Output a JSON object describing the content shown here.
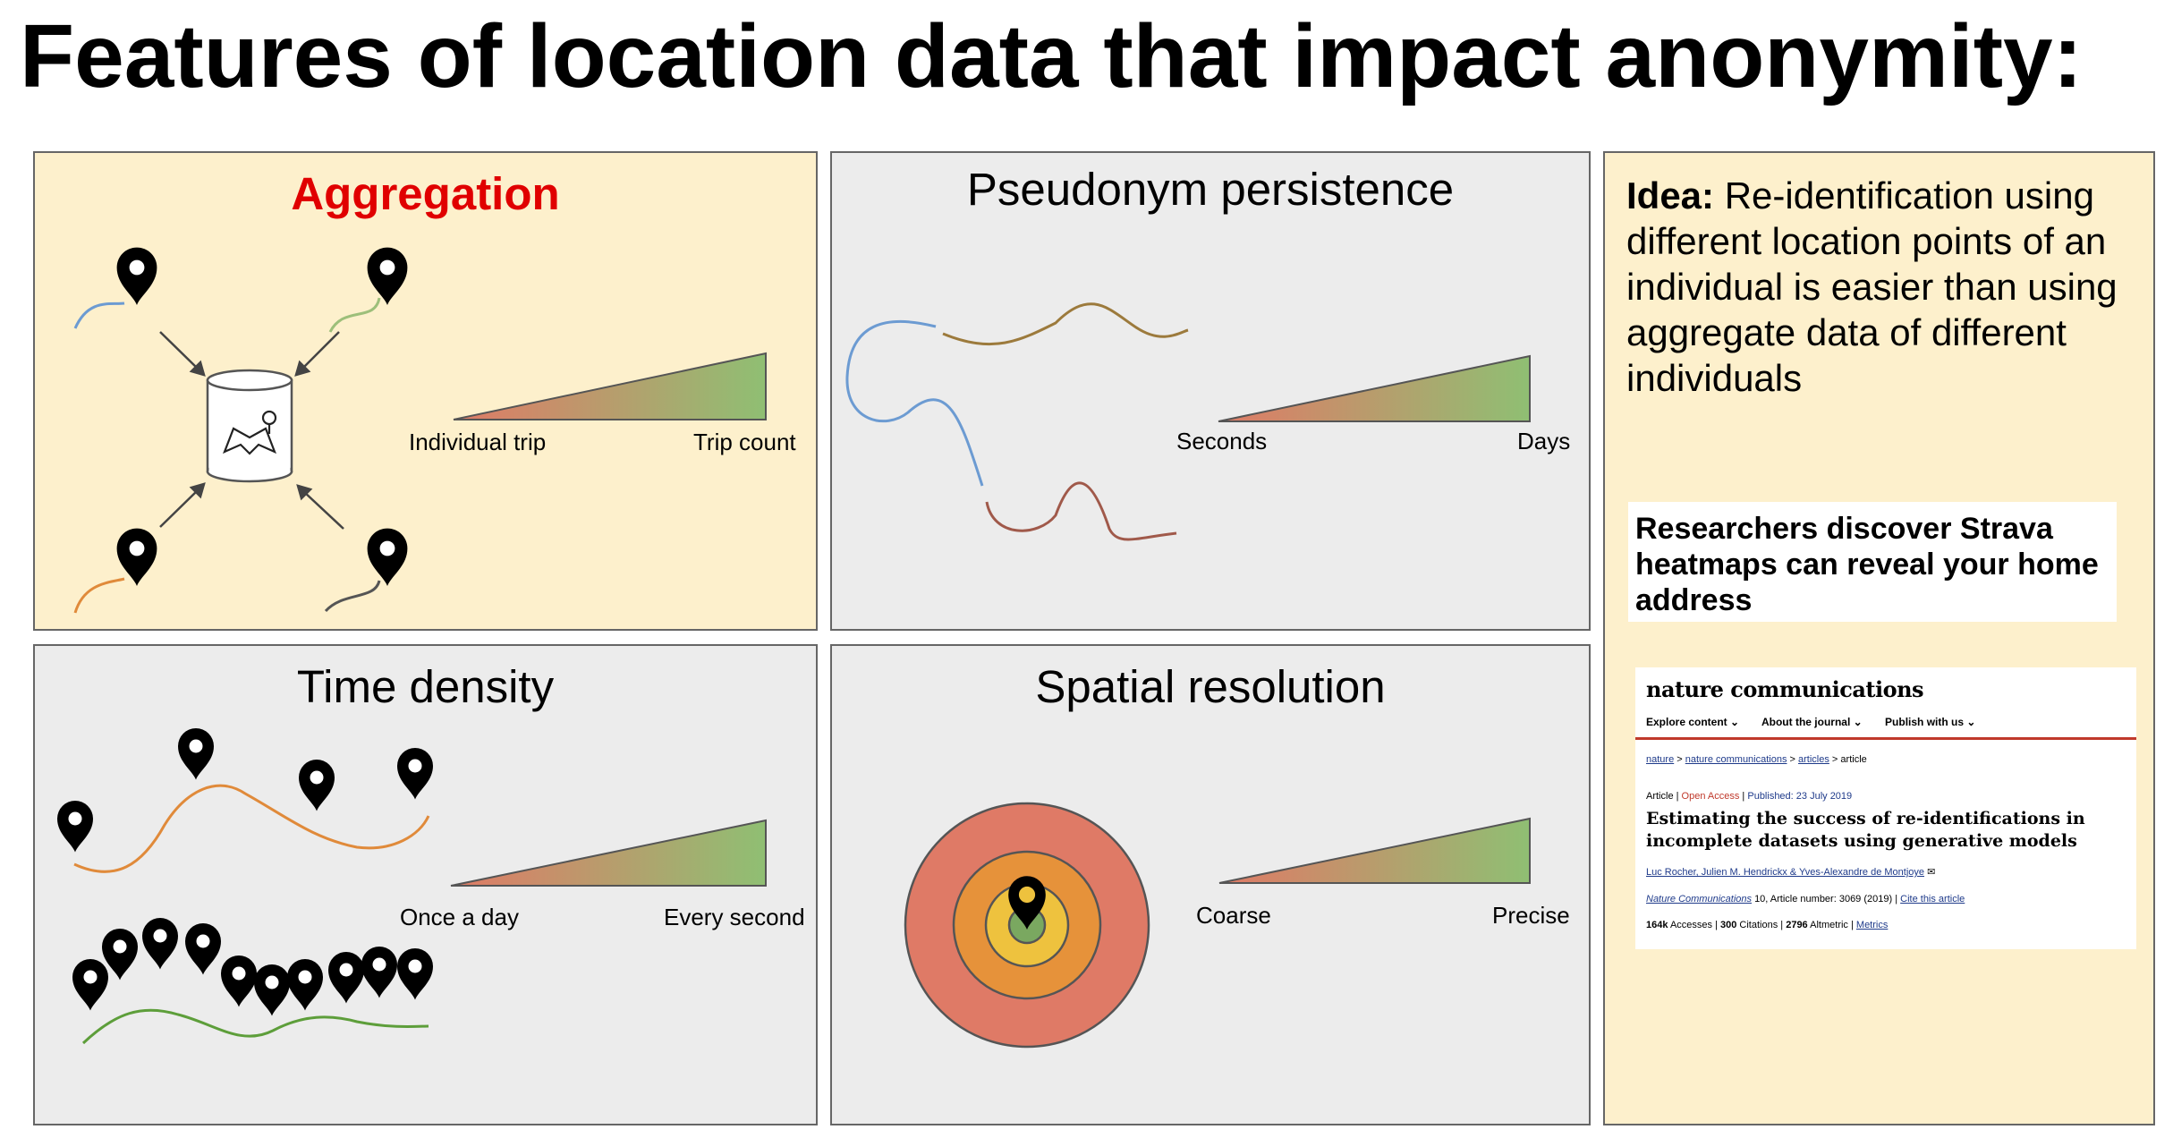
{
  "title": "Features of location data that impact anonymity:",
  "colors": {
    "highlight_panel_bg": "#fdf0cc",
    "plain_panel_bg": "#ececec",
    "aggregation_title": "#e00000",
    "gradient_low": "#e07a66",
    "gradient_high": "#8fbf73"
  },
  "panels": {
    "aggregation": {
      "title": "Aggregation",
      "scale_low": "Individual trip",
      "scale_high": "Trip count"
    },
    "pseudonym": {
      "title": "Pseudonym persistence",
      "scale_low": "Seconds",
      "scale_high": "Days"
    },
    "time_density": {
      "title": "Time density",
      "scale_low": "Once a day",
      "scale_high": "Every second"
    },
    "spatial": {
      "title": "Spatial resolution",
      "scale_low": "Coarse",
      "scale_high": "Precise"
    }
  },
  "idea": {
    "label": "Idea:",
    "text": " Re-identification using different location points of an individual is easier than using aggregate data of different individuals",
    "headline": "Researchers discover Strava heatmaps can reveal your home address"
  },
  "article": {
    "brand": "nature communications",
    "menu": [
      "Explore content ⌄",
      "About the journal ⌄",
      "Publish with us ⌄"
    ],
    "breadcrumb": [
      "nature",
      "nature communications",
      "articles",
      "article"
    ],
    "type": "Article",
    "access": "Open Access",
    "published": "Published: 23 July 2019",
    "title": "Estimating the success of re-identifications in incomplete datasets using generative models",
    "authors": "Luc Rocher, Julien M. Hendrickx & Yves-Alexandre de Montjoye",
    "journal": "Nature Communications",
    "volume": "10, Article number: 3069 (2019)",
    "cite": "Cite this article",
    "accesses": "164k",
    "accesses_label": "Accesses",
    "citations": "300",
    "citations_label": "Citations",
    "altmetric": "2796",
    "altmetric_label": "Altmetric",
    "metrics_link": "Metrics"
  }
}
